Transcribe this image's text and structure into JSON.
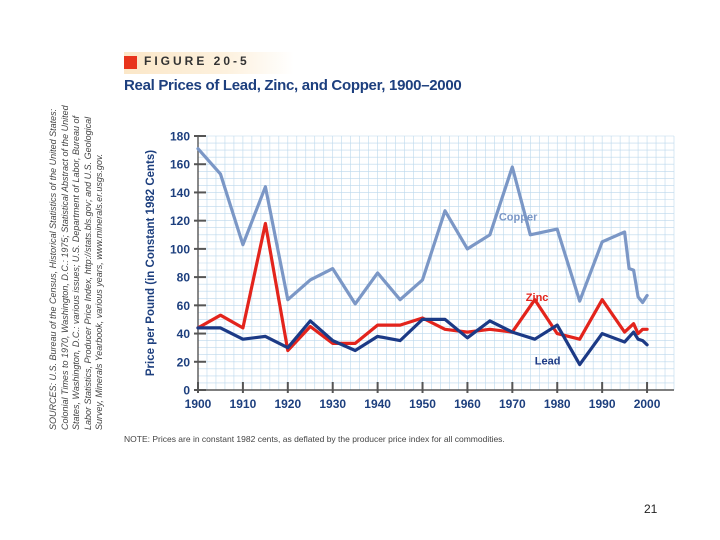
{
  "figure": {
    "label": "FIGURE 20-5",
    "title": "Real Prices of Lead, Zinc, and Copper, 1900–2000"
  },
  "sources_text": "SOURCES: U.S. Bureau of the Census, Historical Statistics of the United States: Colonial Times to 1970, Washington, D.C.: 1975; Statistical Abstract of the United States, Washington, D.C.: various issues; U.S. Department of Labor, Bureau of Labor Statistics, Producer Price Index, http://stats.bls.gov; and U.S. Geological Survey, Minerals Yearbook, various years, www.minerals.er.usgs.gov.",
  "note": "NOTE: Prices are in constant 1982 cents, as deflated by the producer price index for all commodities.",
  "page_number": "21",
  "colors": {
    "copper": "#7b97c6",
    "zinc": "#e3241c",
    "lead": "#1c3a86",
    "grid": "#bcd8ec",
    "axis": "#555555",
    "text": "#1d3f7e"
  },
  "chart_data": {
    "type": "line",
    "title": "Real Prices of Lead, Zinc, and Copper, 1900–2000",
    "xlabel": "",
    "ylabel": "Price per Pound (in Constant 1982 Cents)",
    "xlim": [
      1900,
      2006
    ],
    "ylim": [
      0,
      180
    ],
    "x_ticks": [
      "1900",
      "1910",
      "1920",
      "1930",
      "1940",
      "1950",
      "1960",
      "1970",
      "1980",
      "1990",
      "2000"
    ],
    "y_ticks": [
      "0",
      "20",
      "40",
      "60",
      "80",
      "100",
      "120",
      "140",
      "160",
      "180"
    ],
    "grid": true,
    "series": [
      {
        "name": "Copper",
        "color_key": "copper",
        "x": [
          1900,
          1905,
          1910,
          1915,
          1920,
          1925,
          1930,
          1935,
          1940,
          1945,
          1950,
          1955,
          1960,
          1965,
          1970,
          1974,
          1980,
          1985,
          1990,
          1995,
          1996,
          1997,
          1998,
          1999,
          2000
        ],
        "y": [
          171,
          153,
          103,
          144,
          64,
          78,
          86,
          61,
          83,
          64,
          78,
          127,
          100,
          110,
          158,
          110,
          114,
          63,
          105,
          112,
          86,
          85,
          66,
          62,
          67
        ]
      },
      {
        "name": "Zinc",
        "color_key": "zinc",
        "x": [
          1900,
          1905,
          1910,
          1915,
          1920,
          1925,
          1930,
          1935,
          1940,
          1945,
          1950,
          1955,
          1960,
          1965,
          1970,
          1975,
          1980,
          1985,
          1990,
          1995,
          1997,
          1998,
          1999,
          2000
        ],
        "y": [
          44,
          53,
          44,
          118,
          28,
          45,
          33,
          33,
          46,
          46,
          51,
          43,
          41,
          43,
          41,
          64,
          40,
          36,
          64,
          41,
          47,
          40,
          43,
          43
        ]
      },
      {
        "name": "Lead",
        "color_key": "lead",
        "x": [
          1900,
          1905,
          1910,
          1915,
          1920,
          1925,
          1930,
          1935,
          1940,
          1945,
          1950,
          1955,
          1960,
          1965,
          1970,
          1975,
          1980,
          1985,
          1990,
          1995,
          1997,
          1998,
          1999,
          2000
        ],
        "y": [
          44,
          44,
          36,
          38,
          30,
          49,
          35,
          28,
          38,
          35,
          50,
          50,
          37,
          49,
          41,
          36,
          46,
          18,
          40,
          34,
          41,
          36,
          35,
          32
        ]
      }
    ],
    "annotations": [
      {
        "text": "Copper",
        "x": 1967,
        "y": 120
      },
      {
        "text": "Zinc",
        "x": 1973,
        "y": 63
      },
      {
        "text": "Lead",
        "x": 1975,
        "y": 18
      }
    ]
  }
}
